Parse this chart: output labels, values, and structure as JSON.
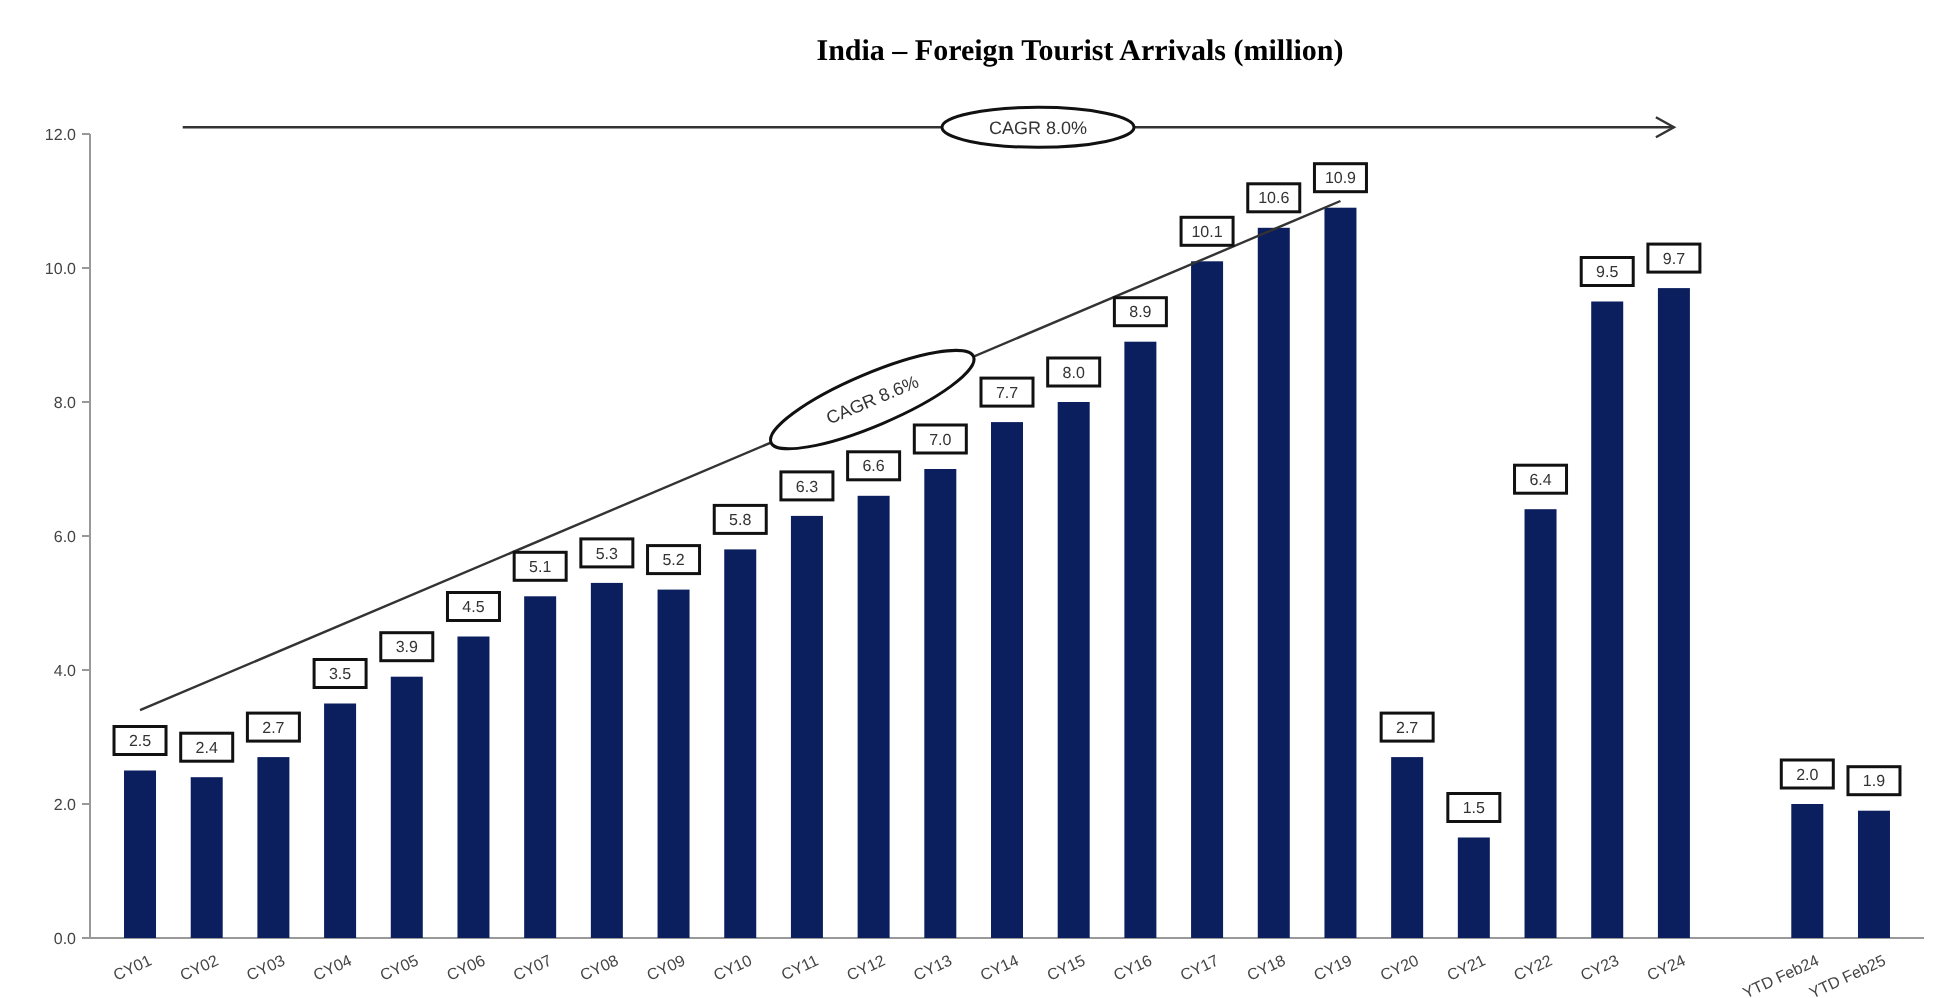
{
  "chart_data": {
    "type": "bar",
    "title": "India – Foreign Tourist Arrivals (million)",
    "categories": [
      "CY01",
      "CY02",
      "CY03",
      "CY04",
      "CY05",
      "CY06",
      "CY07",
      "CY08",
      "CY09",
      "CY10",
      "CY11",
      "CY12",
      "CY13",
      "CY14",
      "CY15",
      "CY16",
      "CY17",
      "CY18",
      "CY19",
      "CY20",
      "CY21",
      "CY22",
      "CY23",
      "CY24",
      null,
      "YTD Feb24",
      "YTD Feb25"
    ],
    "values": [
      2.5,
      2.4,
      2.7,
      3.5,
      3.9,
      4.5,
      5.1,
      5.3,
      5.2,
      5.8,
      6.3,
      6.6,
      7.0,
      7.7,
      8.0,
      8.9,
      10.1,
      10.6,
      10.9,
      2.7,
      1.5,
      6.4,
      9.5,
      9.7,
      null,
      2.0,
      1.9
    ],
    "value_labels": [
      "2.5",
      "2.4",
      "2.7",
      "3.5",
      "3.9",
      "4.5",
      "5.1",
      "5.3",
      "5.2",
      "5.8",
      "6.3",
      "6.6",
      "7.0",
      "7.7",
      "8.0",
      "8.9",
      "10.1",
      "10.6",
      "10.9",
      "2.7",
      "1.5",
      "6.4",
      "9.5",
      "9.7",
      null,
      "2.0",
      "1.9"
    ],
    "color": "#0b1f5e",
    "ylim": [
      0,
      12
    ],
    "yticks": [
      {
        "value": 0,
        "label": "0.0"
      },
      {
        "value": 2,
        "label": "2.0"
      },
      {
        "value": 4,
        "label": "4.0"
      },
      {
        "value": 6,
        "label": "6.0"
      },
      {
        "value": 8,
        "label": "8.0"
      },
      {
        "value": 10,
        "label": "10.0"
      },
      {
        "value": 12,
        "label": "12.0"
      }
    ],
    "grid": false,
    "annotations": [
      "CAGR 8.0%",
      "CAGR 8.6%"
    ]
  }
}
